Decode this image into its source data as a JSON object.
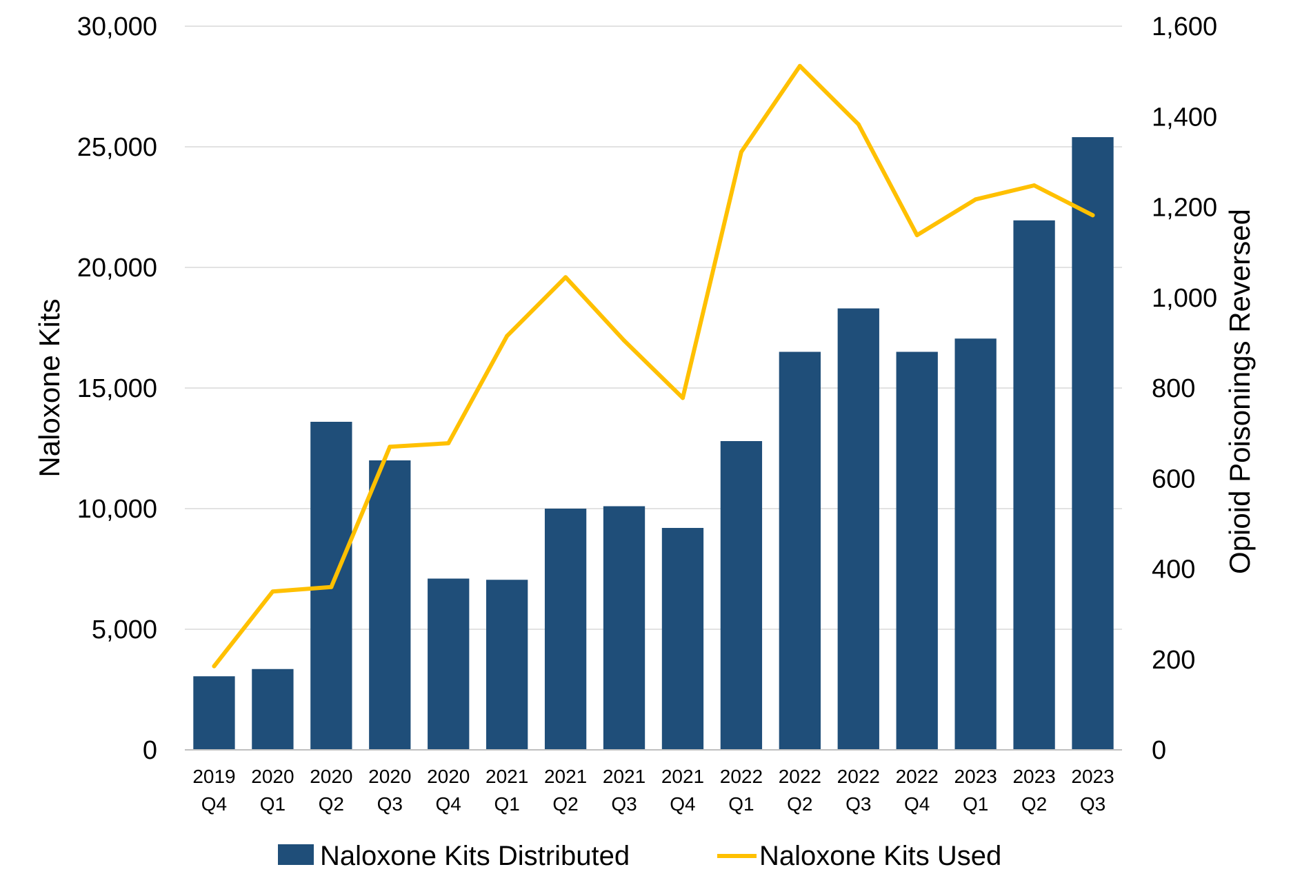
{
  "chart_data": {
    "type": "bar",
    "categories": [
      [
        "2019",
        "Q4"
      ],
      [
        "2020",
        "Q1"
      ],
      [
        "2020",
        "Q2"
      ],
      [
        "2020",
        "Q3"
      ],
      [
        "2020",
        "Q4"
      ],
      [
        "2021",
        "Q1"
      ],
      [
        "2021",
        "Q2"
      ],
      [
        "2021",
        "Q3"
      ],
      [
        "2021",
        "Q4"
      ],
      [
        "2022",
        "Q1"
      ],
      [
        "2022",
        "Q2"
      ],
      [
        "2022",
        "Q3"
      ],
      [
        "2022",
        "Q4"
      ],
      [
        "2023",
        "Q1"
      ],
      [
        "2023",
        "Q2"
      ],
      [
        "2023",
        "Q3"
      ]
    ],
    "series": [
      {
        "name": "Naloxone Kits Distributed",
        "type": "bar",
        "axis": "left",
        "color": "#1F4E79",
        "values": [
          3050,
          3350,
          13600,
          12000,
          7100,
          7050,
          10000,
          10100,
          9200,
          12800,
          16500,
          18300,
          16500,
          17050,
          21950,
          25400
        ]
      },
      {
        "name": "Naloxone Kits Used",
        "type": "line",
        "axis": "right",
        "color": "#FFC000",
        "values": [
          185,
          350,
          360,
          670,
          678,
          915,
          1045,
          905,
          778,
          1322,
          1512,
          1383,
          1138,
          1217,
          1248,
          1182
        ]
      }
    ],
    "ylabel_left": "Naloxone Kits",
    "ylabel_right": "Opioid Poisonings Reversed",
    "ylim_left": [
      0,
      30000
    ],
    "ylim_right": [
      0,
      1600
    ],
    "yticks_left": [
      "0",
      "5,000",
      "10,000",
      "15,000",
      "20,000",
      "25,000",
      "30,000"
    ],
    "yticks_right": [
      "0",
      "200",
      "400",
      "600",
      "800",
      "1,000",
      "1,200",
      "1,400",
      "1,600"
    ],
    "grid": true,
    "legend_position": "bottom"
  }
}
